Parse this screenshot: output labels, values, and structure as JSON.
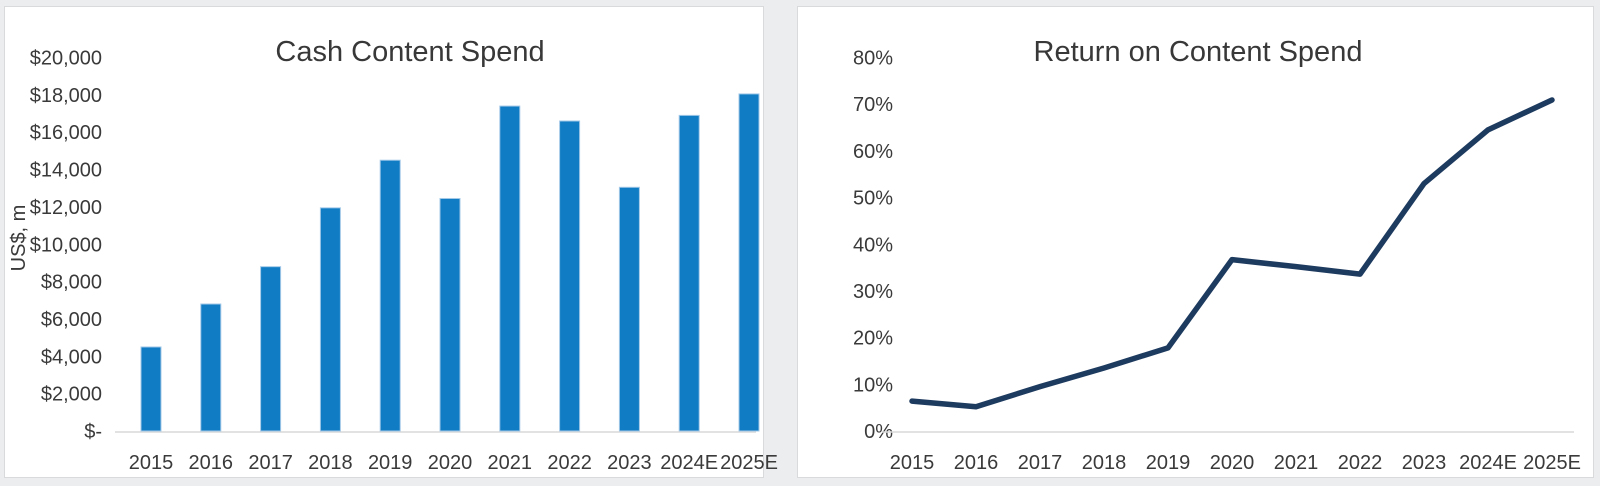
{
  "page": {
    "background": "#ecedee"
  },
  "colors": {
    "panel_background": "#ffffff",
    "panel_border": "#d9dadb",
    "axis_line": "#d9d9d9",
    "text": "#3a3a3a"
  },
  "chart_data": [
    {
      "type": "bar",
      "title": "Cash Content Spend",
      "xlabel": "",
      "ylabel": "US$, m",
      "categories": [
        "2015",
        "2016",
        "2017",
        "2018",
        "2019",
        "2020",
        "2021",
        "2022",
        "2023",
        "2024E",
        "2025E"
      ],
      "values": [
        4500,
        6800,
        8800,
        11950,
        14500,
        12450,
        17400,
        16600,
        13050,
        16900,
        18050
      ],
      "ylim": [
        0,
        20000
      ],
      "y_ticks": [
        "$-",
        "$2,000",
        "$4,000",
        "$6,000",
        "$8,000",
        "$10,000",
        "$12,000",
        "$14,000",
        "$16,000",
        "$18,000",
        "$20,000"
      ],
      "bar_color": "#107cc4",
      "bar_edge_color": "#a3c9e8",
      "grid": false,
      "legend": "none"
    },
    {
      "type": "line",
      "title": "Return on Content Spend",
      "xlabel": "",
      "ylabel": "",
      "categories": [
        "2015",
        "2016",
        "2017",
        "2018",
        "2019",
        "2020",
        "2021",
        "2022",
        "2023",
        "2024E",
        "2025E"
      ],
      "values": [
        6.4,
        5.2,
        9.5,
        13.5,
        17.8,
        36.7,
        35.2,
        33.6,
        53,
        64.5,
        70.9
      ],
      "ylim": [
        0,
        80
      ],
      "y_ticks": [
        "0%",
        "10%",
        "20%",
        "30%",
        "40%",
        "50%",
        "60%",
        "70%",
        "80%"
      ],
      "line_color": "#1d3a5f",
      "grid": false,
      "legend": "none"
    }
  ]
}
